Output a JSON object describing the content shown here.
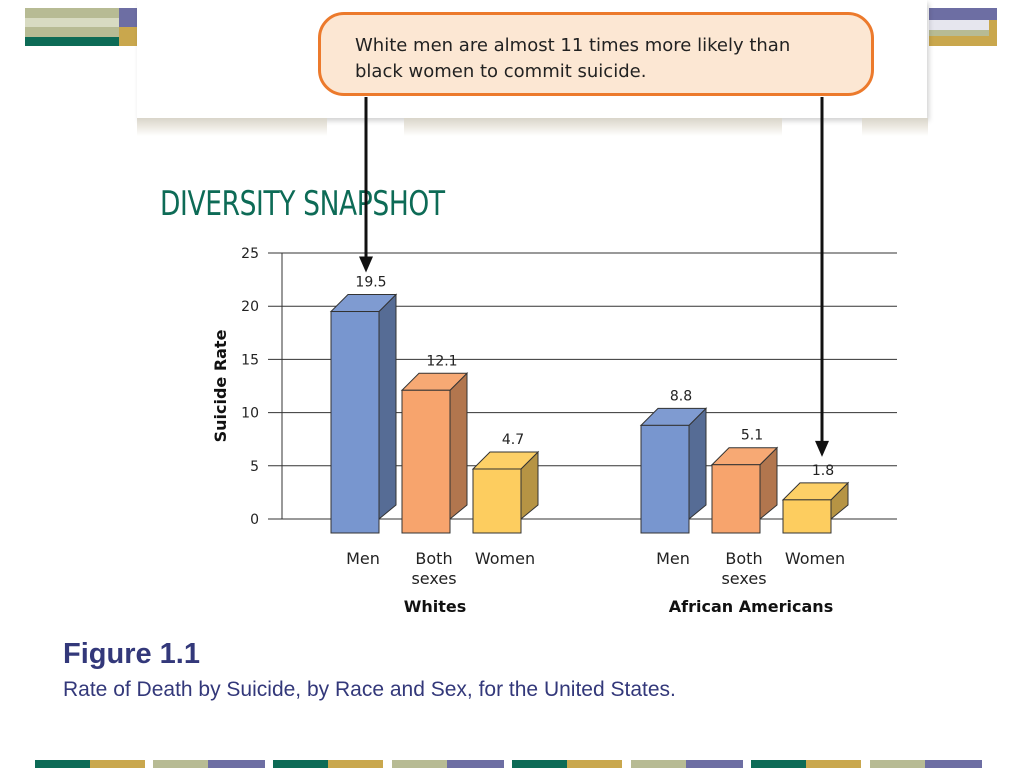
{
  "callout": {
    "line1": "White men are almost 11 times more likely than",
    "line2": "black women to commit suicide."
  },
  "heading": "DIVERSITY SNAPSHOT",
  "figure": {
    "title": "Figure 1.1",
    "caption": "Rate of Death by Suicide, by Race and Sex, for the United States."
  },
  "colors": {
    "men": "#7896cf",
    "both": "#f7a46d",
    "women": "#fdcd5f",
    "heading": "#0d6b56",
    "callout_border": "#ec7a2c",
    "callout_fill": "#fce7d3",
    "caption": "#33387a",
    "deco_teal": "#0d6b56",
    "deco_olive": "#b7bb94",
    "deco_purple": "#6d6ea3",
    "deco_gold": "#c9a74d"
  },
  "chart_data": {
    "type": "bar",
    "ylabel": "Suicide Rate",
    "ylim": [
      0,
      25
    ],
    "yticks": [
      0,
      5,
      10,
      15,
      20,
      25
    ],
    "grid": true,
    "groups": [
      {
        "name": "Whites",
        "bars": [
          {
            "category": [
              "Men"
            ],
            "value": 19.5,
            "label": "19.5",
            "color_key": "men"
          },
          {
            "category": [
              "Both",
              "sexes"
            ],
            "value": 12.1,
            "label": "12.1",
            "color_key": "both"
          },
          {
            "category": [
              "Women"
            ],
            "value": 4.7,
            "label": "4.7",
            "color_key": "women"
          }
        ]
      },
      {
        "name": "African Americans",
        "bars": [
          {
            "category": [
              "Men"
            ],
            "value": 8.8,
            "label": "8.8",
            "color_key": "men"
          },
          {
            "category": [
              "Both",
              "sexes"
            ],
            "value": 5.1,
            "label": "5.1",
            "color_key": "both"
          },
          {
            "category": [
              "Women"
            ],
            "value": 1.8,
            "label": "1.8",
            "color_key": "women"
          }
        ]
      }
    ]
  }
}
